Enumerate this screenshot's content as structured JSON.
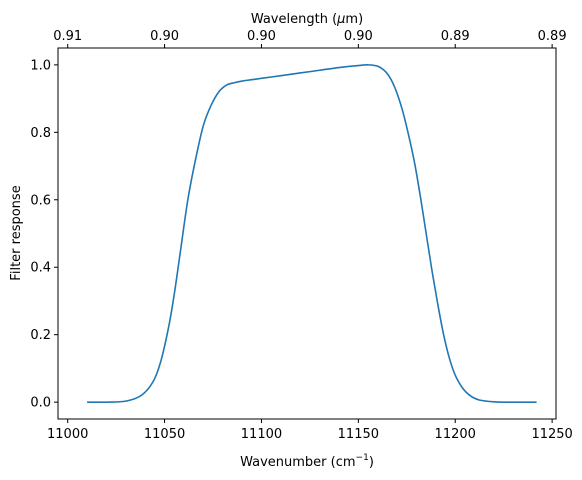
{
  "chart_data": {
    "type": "line",
    "xlabel": "Wavenumber (cm",
    "xlabel_sup": "−1",
    "xlabel_end": ")",
    "ylabel": "Filter response",
    "top_xlabel": "Wavelength (",
    "top_xlabel_mu": "μ",
    "top_xlabel_end": "m)",
    "xlim": [
      10995,
      11252
    ],
    "ylim": [
      -0.05,
      1.05
    ],
    "x_ticks": [
      11000,
      11050,
      11100,
      11150,
      11200,
      11250
    ],
    "y_ticks": [
      0.0,
      0.2,
      0.4,
      0.6,
      0.8,
      1.0
    ],
    "y_tick_labels": [
      "0.0",
      "0.2",
      "0.4",
      "0.6",
      "0.8",
      "1.0"
    ],
    "top_ticks": [
      {
        "x": 11000,
        "label": "0.91"
      },
      {
        "x": 11050,
        "label": "0.90"
      },
      {
        "x": 11100,
        "label": "0.90"
      },
      {
        "x": 11150,
        "label": "0.90"
      },
      {
        "x": 11200,
        "label": "0.89"
      },
      {
        "x": 11250,
        "label": "0.89"
      }
    ],
    "grid": false,
    "line_color": "#1f77b4",
    "series": [
      {
        "x": [
          11010,
          11020,
          11030,
          11038,
          11044,
          11048,
          11052,
          11055,
          11058,
          11062,
          11066,
          11070,
          11074,
          11078,
          11082,
          11086,
          11090,
          11095,
          11100,
          11110,
          11120,
          11130,
          11140,
          11150,
          11155,
          11160,
          11164,
          11167,
          11170,
          11173,
          11176,
          11179,
          11182,
          11185,
          11188,
          11191,
          11194,
          11197,
          11200,
          11204,
          11208,
          11212,
          11216,
          11220,
          11225,
          11230,
          11242
        ],
        "y": [
          0.0,
          0.0,
          0.003,
          0.02,
          0.06,
          0.12,
          0.22,
          0.32,
          0.44,
          0.6,
          0.72,
          0.82,
          0.88,
          0.92,
          0.94,
          0.947,
          0.952,
          0.956,
          0.96,
          0.968,
          0.976,
          0.984,
          0.992,
          0.998,
          1.0,
          0.996,
          0.98,
          0.955,
          0.915,
          0.86,
          0.79,
          0.71,
          0.61,
          0.5,
          0.39,
          0.29,
          0.2,
          0.13,
          0.08,
          0.04,
          0.018,
          0.007,
          0.003,
          0.001,
          0.0,
          0.0,
          0.0
        ]
      }
    ]
  }
}
